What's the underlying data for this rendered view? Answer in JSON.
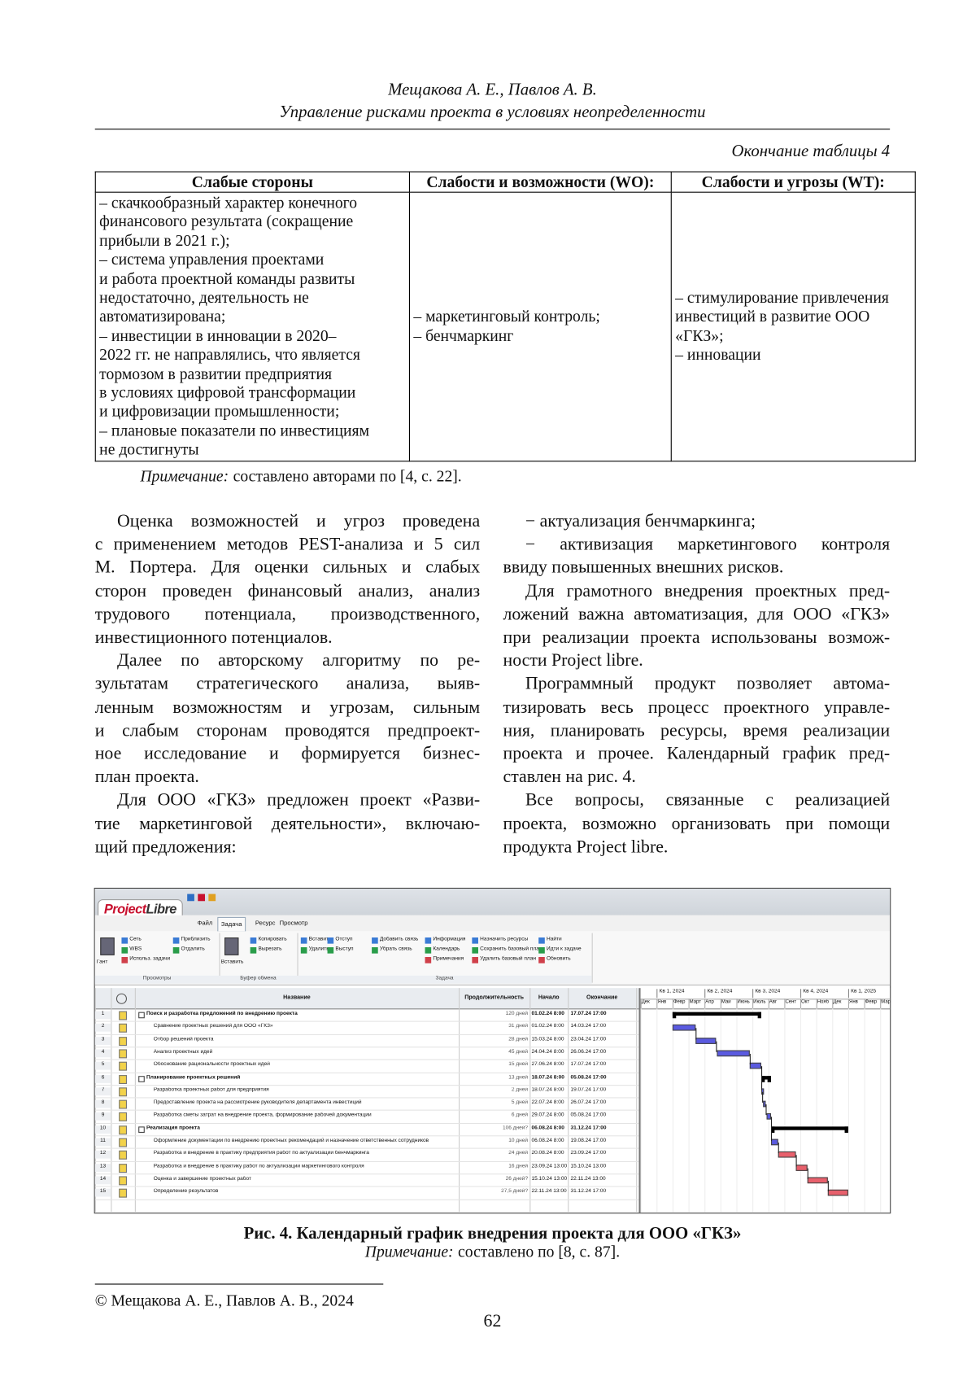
{
  "header": {
    "authors": "Мещакова А. Е., Павлов А. В.",
    "title": "Управление рисками проекта в условиях неопределенности"
  },
  "table": {
    "caption": "Окончание таблицы 4",
    "columns": [
      "Слабые стороны",
      "Слабости и возможности (WO):",
      "Слабости и угрозы (WT):"
    ],
    "rows": [
      [
        [
          "– скачкообразный характер конечного",
          "финансового результата (сокращение",
          "прибыли в 2021 г.);",
          "– система управления проектами",
          "и работа проектной команды развиты",
          "недостаточно, деятельность не",
          "автоматизирована;",
          "– инвестиции в инновации в 2020–",
          "2022 гг. не направлялись, что является",
          "тормозом в развитии предприятия",
          "в условиях цифровой трансформации",
          "и цифровизации промышленности;",
          "– плановые показатели по инвестициям",
          "не достигнуты"
        ],
        [
          "– маркетинговый контроль;",
          "– бенчмаркинг"
        ],
        [
          "– стимулирование привлечения",
          "инвестиций в развитие ООО",
          "«ГКЗ»;",
          "– инновации"
        ]
      ]
    ],
    "note": {
      "label": "Примечание:",
      "text": "составлено авторами по [4, с. 22]."
    }
  },
  "body": {
    "left": [
      [
        "Оценка возможностей и угроз проведена",
        "с применением методов PEST-анализа и 5 сил",
        "М. Портера. Для оценки сильных и слабых",
        "сторон проведен финансовый анализ, анализ",
        "трудового потенциала, производственного,",
        "инвестиционного потенциалов."
      ],
      [
        "Далее по авторскому алгоритму по ре-",
        "зультатам стратегического анализа, выяв-",
        "ленным возможностям и угрозам, сильным",
        "и слабым сторонам проводятся предпроект-",
        "ное исследование и формируется бизнес-",
        "план проекта."
      ],
      [
        "Для ООО «ГКЗ» предложен проект «Разви-",
        "тие маркетинговой деятельности», включаю-",
        "щий предложения:"
      ]
    ],
    "right": [
      [
        "− актуализация бенчмаркинга;"
      ],
      [
        "− активизация маркетингового контроля",
        "ввиду повышенных внешних рисков."
      ],
      [
        "Для грамотного внедрения проектных пред-",
        "ложений важна автоматизация, для ООО «ГКЗ»",
        "при реализации проекта использованы возмож-",
        "ности Project libre."
      ],
      [
        "Программный продукт позволяет автома-",
        "тизировать весь процесс проектного управле-",
        "ния, планировать ресурсы, время реализации",
        "проекта и прочее. Календарный график пред-",
        "ставлен на рис. 4."
      ],
      [
        "Все вопросы, связанные с реализацией",
        "проекта, возможно организовать при помощи",
        "продукта Project libre."
      ]
    ]
  },
  "figure": {
    "app": {
      "logo": [
        "Project",
        "Libre"
      ],
      "tabs": [
        "Файл",
        "Задача",
        "Ресурс",
        "Просмотр"
      ],
      "ribbon": [
        {
          "label": "Просмотры",
          "columns": [
            [
              "Гант"
            ],
            [
              "Сеть",
              "WBS",
              "Использ. задачи"
            ],
            [
              "Приблизить",
              "Отдалить"
            ]
          ]
        },
        {
          "label": "Буфер обмена",
          "columns": [
            [
              "Вставить"
            ],
            [
              "Копировать",
              "Вырезать"
            ]
          ]
        },
        {
          "label": "Задача",
          "columns": [
            [
              "Вставить",
              "Удалить"
            ],
            [
              "Отступ",
              "Выступ"
            ],
            [
              "Добавить связь",
              "Убрать связь"
            ],
            [
              "Информация",
              "Календарь",
              "Примечания"
            ],
            [
              "Назначить ресурсы",
              "Сохранить базовый план",
              "Удалить базовый план"
            ],
            [
              "Найти",
              "Идти к задаче",
              "Обновить"
            ]
          ]
        }
      ],
      "columns": [
        "Название",
        "Продолжительность",
        "Начало",
        "Окончание"
      ],
      "quarters": [
        "Кв 1, 2024",
        "Кв 2, 2024",
        "Кв 3, 2024",
        "Кв 4, 2024",
        "Кв 1, 2025"
      ],
      "months": [
        "Дек",
        "Янв",
        "Февр",
        "Март",
        "Апр",
        "Май",
        "Июнь",
        "Июль",
        "Авг",
        "Сент",
        "Окт",
        "Нояб",
        "Дек",
        "Янв",
        "Февр",
        "Март"
      ],
      "colors": {
        "summary": "#000000",
        "task": "#5a5ae0",
        "critical": "#e8606c"
      },
      "tasks": [
        {
          "id": 1,
          "name": "Поиск и разработка предложений по внедрению проекта",
          "duration": "120 дней",
          "start": "01.02.24 8:00",
          "end": "17.07.24 17:00",
          "kind": "summary"
        },
        {
          "id": 2,
          "name": "Сравнение проектных решений для ООО «ГКЗ»",
          "duration": "31 дней",
          "start": "01.02.24 8:00",
          "end": "14.03.24 17:00",
          "kind": "task"
        },
        {
          "id": 3,
          "name": "Отбор решений проекта",
          "duration": "28 дней",
          "start": "15.03.24 8:00",
          "end": "23.04.24 17:00",
          "kind": "task"
        },
        {
          "id": 4,
          "name": "Анализ проектных идей",
          "duration": "45 дней",
          "start": "24.04.24 8:00",
          "end": "26.06.24 17:00",
          "kind": "task"
        },
        {
          "id": 5,
          "name": "Обоснование рациональности проектных идей",
          "duration": "15 дней",
          "start": "27.06.24 8:00",
          "end": "17.07.24 17:00",
          "kind": "task"
        },
        {
          "id": 6,
          "name": "Планирование проектных решений",
          "duration": "13 дней",
          "start": "18.07.24 8:00",
          "end": "05.08.24 17:00",
          "kind": "summary"
        },
        {
          "id": 7,
          "name": "Разработка проектных работ для предприятия",
          "duration": "2 дней",
          "start": "18.07.24 8:00",
          "end": "19.07.24 17:00",
          "kind": "task"
        },
        {
          "id": 8,
          "name": "Предоставление проекта на рассмотрение руководителя департамента инвестиций",
          "duration": "5 дней",
          "start": "22.07.24 8:00",
          "end": "26.07.24 17:00",
          "kind": "task"
        },
        {
          "id": 9,
          "name": "Разработка сметы затрат на внедрение проекта, формирование рабочей документации",
          "duration": "6 дней",
          "start": "29.07.24 8:00",
          "end": "05.08.24 17:00",
          "kind": "task"
        },
        {
          "id": 10,
          "name": "Реализация проекта",
          "duration": "106 дней?",
          "start": "06.08.24 8:00",
          "end": "31.12.24 17:00",
          "kind": "summary"
        },
        {
          "id": 11,
          "name": "Оформление документации по внедрению проектных рекомендаций и назначение ответственных сотрудников",
          "duration": "10 дней",
          "start": "06.08.24 8:00",
          "end": "19.08.24 17:00",
          "kind": "task"
        },
        {
          "id": 12,
          "name": "Разработка и внедрение в практику предприятия работ по актуализации бенчмаркинга",
          "duration": "24 дней",
          "start": "20.08.24 8:00",
          "end": "23.09.24 17:00",
          "kind": "critical"
        },
        {
          "id": 13,
          "name": "Разработка и внедрение в практику работ по актуализации маркетингового контроля",
          "duration": "16 дней",
          "start": "23.09.24 13:00",
          "end": "15.10.24 13:00",
          "kind": "critical"
        },
        {
          "id": 14,
          "name": "Оценка и завершение проектных работ",
          "duration": "26 дней?",
          "start": "15.10.24 13:00",
          "end": "22.11.24 13:00",
          "kind": "critical"
        },
        {
          "id": 15,
          "name": "Определение результатов",
          "duration": "27,5 дней?",
          "start": "22.11.24 13:00",
          "end": "31.12.24 17:00",
          "kind": "critical"
        }
      ]
    },
    "caption": "Рис. 4. Календарный график внедрения проекта для ООО «ГКЗ»",
    "note": {
      "label": "Примечание:",
      "text": "составлено по [8, с. 87]."
    }
  },
  "footnote": "© Мещакова А. Е., Павлов А. В., 2024",
  "page_number": "62"
}
